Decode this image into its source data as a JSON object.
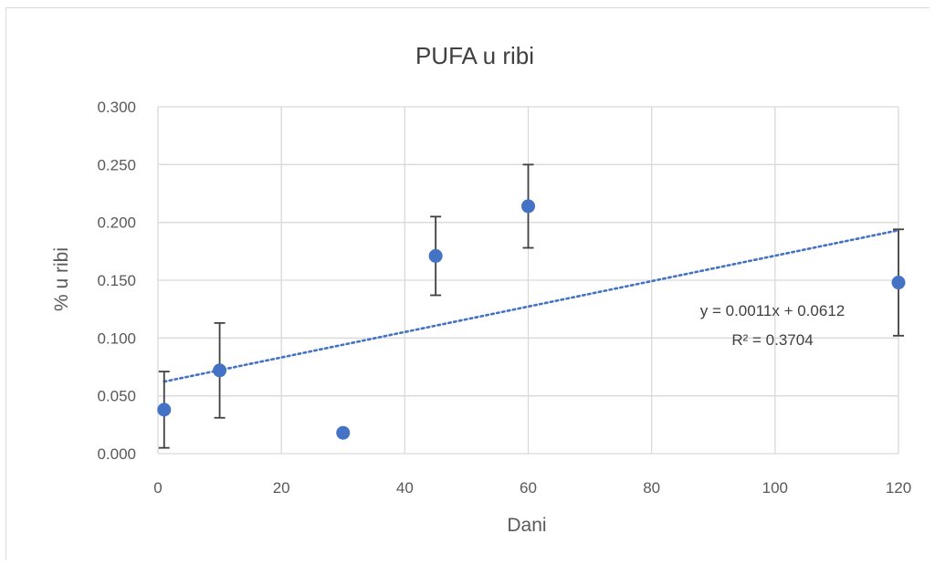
{
  "chart_data": {
    "type": "scatter",
    "title": "PUFA u ribi",
    "xlabel": "Dani",
    "ylabel": "% u ribi",
    "xlim": [
      0,
      120
    ],
    "ylim": [
      0,
      0.3
    ],
    "x_ticks": [
      "0",
      "20",
      "40",
      "60",
      "80",
      "100",
      "120"
    ],
    "y_ticks": [
      "0.000",
      "0.050",
      "0.100",
      "0.150",
      "0.200",
      "0.250",
      "0.300"
    ],
    "grid": true,
    "legend": "none",
    "series": [
      {
        "color": "#4472c4",
        "points": [
          {
            "x": 1,
            "y": 0.038,
            "err_low": 0.033,
            "err_high": 0.033
          },
          {
            "x": 10,
            "y": 0.072,
            "err_low": 0.041,
            "err_high": 0.041
          },
          {
            "x": 30,
            "y": 0.018,
            "err_low": 0.002,
            "err_high": 0.002
          },
          {
            "x": 45,
            "y": 0.171,
            "err_low": 0.034,
            "err_high": 0.034
          },
          {
            "x": 60,
            "y": 0.214,
            "err_low": 0.036,
            "err_high": 0.036
          },
          {
            "x": 120,
            "y": 0.148,
            "err_low": 0.046,
            "err_high": 0.046
          }
        ]
      }
    ],
    "trendline": {
      "type": "linear",
      "slope": 0.0011,
      "intercept": 0.0612,
      "x_range": [
        1,
        120
      ],
      "style": "dotted",
      "color": "#4472c4",
      "equation_label": "y = 0.0011x + 0.0612",
      "r2_label": "R² = 0.3704"
    }
  }
}
